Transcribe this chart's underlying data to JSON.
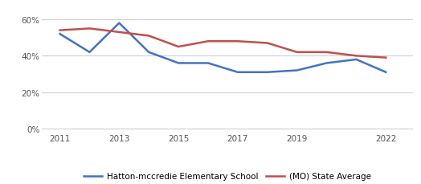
{
  "school_years": [
    2011,
    2012,
    2013,
    2014,
    2015,
    2016,
    2017,
    2018,
    2019,
    2020,
    2021,
    2022
  ],
  "school_values": [
    0.52,
    0.42,
    0.58,
    0.42,
    0.36,
    0.36,
    0.31,
    0.31,
    0.32,
    0.36,
    0.38,
    0.31
  ],
  "state_values": [
    0.54,
    0.55,
    0.53,
    0.51,
    0.45,
    0.48,
    0.48,
    0.47,
    0.42,
    0.42,
    0.4,
    0.39
  ],
  "school_color": "#4472c4",
  "state_color": "#c0504d",
  "school_label": "Hatton-mccredie Elementary School",
  "state_label": "(MO) State Average",
  "yticks": [
    0.0,
    0.2,
    0.4,
    0.6
  ],
  "ytick_labels": [
    "0%",
    "20%",
    "40%",
    "60%"
  ],
  "xticks": [
    2011,
    2013,
    2015,
    2017,
    2019,
    2022
  ],
  "ylim": [
    -0.02,
    0.68
  ],
  "xlim": [
    2010.4,
    2022.9
  ],
  "line_width": 1.8,
  "bg_color": "#ffffff",
  "grid_color": "#d0d0d0",
  "legend_fontsize": 7.5,
  "tick_fontsize": 7.5,
  "tick_color": "#555555"
}
